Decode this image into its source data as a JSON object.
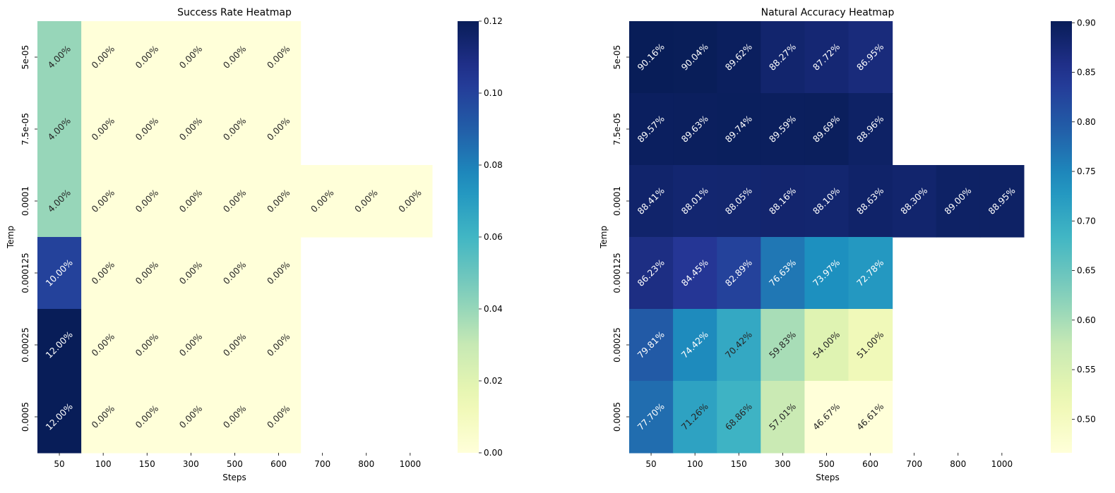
{
  "chart_data": [
    {
      "type": "heatmap",
      "title": "Success Rate Heatmap",
      "xlabel": "Steps",
      "ylabel": "Temp",
      "x_categories": [
        "50",
        "100",
        "150",
        "300",
        "500",
        "600",
        "700",
        "800",
        "1000"
      ],
      "y_categories": [
        "5e-05",
        "7.5e-05",
        "0.0001",
        "0.000125",
        "0.00025",
        "0.0005"
      ],
      "values": [
        [
          0.04,
          0.0,
          0.0,
          0.0,
          0.0,
          0.0,
          null,
          null,
          null
        ],
        [
          0.04,
          0.0,
          0.0,
          0.0,
          0.0,
          0.0,
          null,
          null,
          null
        ],
        [
          0.04,
          0.0,
          0.0,
          0.0,
          0.0,
          0.0,
          0.0,
          0.0,
          0.0
        ],
        [
          0.1,
          0.0,
          0.0,
          0.0,
          0.0,
          0.0,
          null,
          null,
          null
        ],
        [
          0.12,
          0.0,
          0.0,
          0.0,
          0.0,
          0.0,
          null,
          null,
          null
        ],
        [
          0.12,
          0.0,
          0.0,
          0.0,
          0.0,
          0.0,
          null,
          null,
          null
        ]
      ],
      "labels": [
        [
          "4.00%",
          "0.00%",
          "0.00%",
          "0.00%",
          "0.00%",
          "0.00%",
          null,
          null,
          null
        ],
        [
          "4.00%",
          "0.00%",
          "0.00%",
          "0.00%",
          "0.00%",
          "0.00%",
          null,
          null,
          null
        ],
        [
          "4.00%",
          "0.00%",
          "0.00%",
          "0.00%",
          "0.00%",
          "0.00%",
          "0.00%",
          "0.00%",
          "0.00%"
        ],
        [
          "10.00%",
          "0.00%",
          "0.00%",
          "0.00%",
          "0.00%",
          "0.00%",
          null,
          null,
          null
        ],
        [
          "12.00%",
          "0.00%",
          "0.00%",
          "0.00%",
          "0.00%",
          "0.00%",
          null,
          null,
          null
        ],
        [
          "12.00%",
          "0.00%",
          "0.00%",
          "0.00%",
          "0.00%",
          "0.00%",
          null,
          null,
          null
        ]
      ],
      "colormap": "YlGnBu",
      "vmin": 0.0,
      "vmax": 0.12,
      "colorbar_ticks": [
        "0.00",
        "0.02",
        "0.04",
        "0.06",
        "0.08",
        "0.10",
        "0.12"
      ]
    },
    {
      "type": "heatmap",
      "title": "Natural Accuracy Heatmap",
      "xlabel": "Steps",
      "ylabel": "Temp",
      "x_categories": [
        "50",
        "100",
        "150",
        "300",
        "500",
        "600",
        "700",
        "800",
        "1000"
      ],
      "y_categories": [
        "5e-05",
        "7.5e-05",
        "0.0001",
        "0.000125",
        "0.00025",
        "0.0005"
      ],
      "values": [
        [
          0.9016,
          0.9004,
          0.8962,
          0.8827,
          0.8772,
          0.8695,
          null,
          null,
          null
        ],
        [
          0.8957,
          0.8963,
          0.8974,
          0.8959,
          0.8969,
          0.8896,
          null,
          null,
          null
        ],
        [
          0.8841,
          0.8801,
          0.8805,
          0.8816,
          0.881,
          0.8863,
          0.883,
          0.89,
          0.8895
        ],
        [
          0.8623,
          0.8445,
          0.8289,
          0.7663,
          0.7397,
          0.7278,
          null,
          null,
          null
        ],
        [
          0.7981,
          0.7442,
          0.7042,
          0.5983,
          0.54,
          0.51,
          null,
          null,
          null
        ],
        [
          0.777,
          0.7126,
          0.6886,
          0.5701,
          0.4667,
          0.4661,
          null,
          null,
          null
        ]
      ],
      "labels": [
        [
          "90.16%",
          "90.04%",
          "89.62%",
          "88.27%",
          "87.72%",
          "86.95%",
          null,
          null,
          null
        ],
        [
          "89.57%",
          "89.63%",
          "89.74%",
          "89.59%",
          "89.69%",
          "88.96%",
          null,
          null,
          null
        ],
        [
          "88.41%",
          "88.01%",
          "88.05%",
          "88.16%",
          "88.10%",
          "88.63%",
          "88.30%",
          "89.00%",
          "88.95%"
        ],
        [
          "86.23%",
          "84.45%",
          "82.89%",
          "76.63%",
          "73.97%",
          "72.78%",
          null,
          null,
          null
        ],
        [
          "79.81%",
          "74.42%",
          "70.42%",
          "59.83%",
          "54.00%",
          "51.00%",
          null,
          null,
          null
        ],
        [
          "77.70%",
          "71.26%",
          "68.86%",
          "57.01%",
          "46.67%",
          "46.61%",
          null,
          null,
          null
        ]
      ],
      "colormap": "YlGnBu",
      "vmin": 0.4661,
      "vmax": 0.9016,
      "colorbar_ticks": [
        "0.50",
        "0.55",
        "0.60",
        "0.65",
        "0.70",
        "0.75",
        "0.80",
        "0.85",
        "0.90"
      ],
      "colorbar_tick_values": [
        0.5,
        0.55,
        0.6,
        0.65,
        0.7,
        0.75,
        0.8,
        0.85,
        0.9
      ]
    }
  ]
}
